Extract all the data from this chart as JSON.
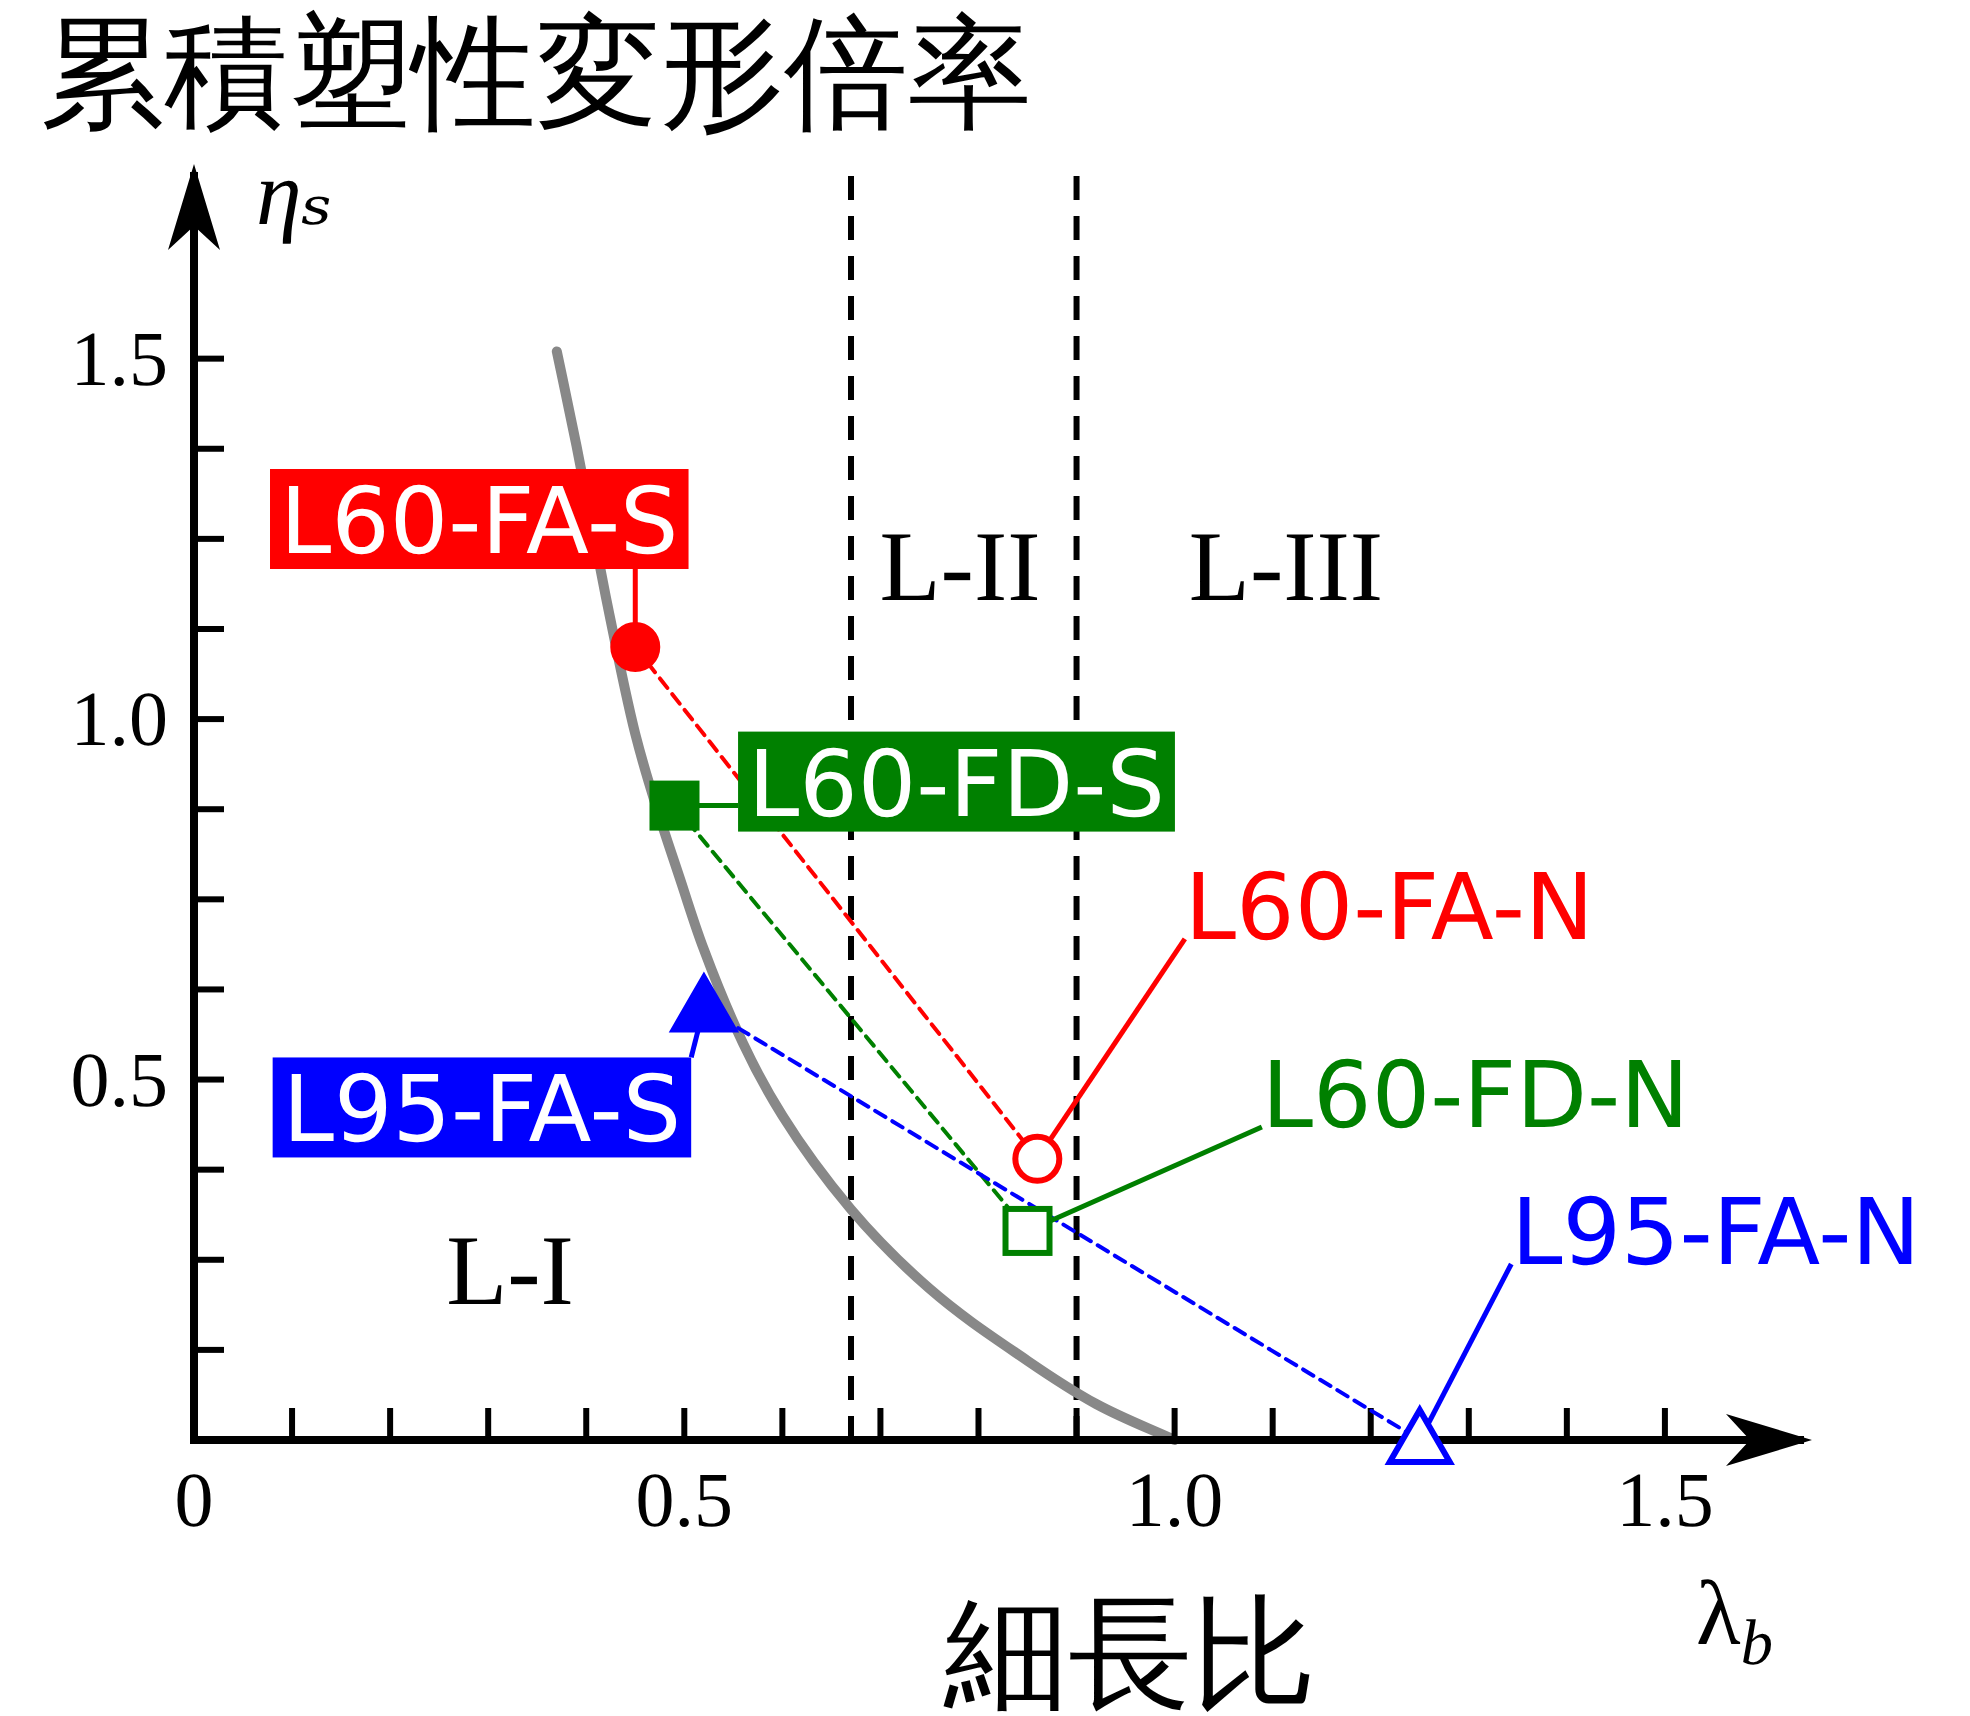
{
  "chart_data": {
    "type": "line",
    "title": "累積塑性変形倍率",
    "xlabel": "λ$_{b}$",
    "ylabel": "ηₛ",
    "annotations": [
      "細長比",
      "L-I",
      "L-II",
      "L-III"
    ],
    "xlim": [
      0,
      1.65
    ],
    "ylim": [
      0,
      1.77
    ],
    "xticks": [
      {
        "value": 0,
        "label": "0"
      },
      {
        "value": 0.1,
        "label": null
      },
      {
        "value": 0.2,
        "label": null
      },
      {
        "value": 0.3,
        "label": null
      },
      {
        "value": 0.4,
        "label": null
      },
      0.5,
      {
        "value": 0.6,
        "label": null
      },
      {
        "value": 0.7,
        "label": null
      },
      {
        "value": 0.8,
        "label": null
      },
      {
        "value": 0.9,
        "label": null
      },
      {
        "value": 1,
        "label": "1.0"
      },
      {
        "value": 1.1,
        "label": null
      },
      {
        "value": 1.2,
        "label": null
      },
      {
        "value": 1.3,
        "label": null
      },
      {
        "value": 1.4,
        "label": null
      },
      1.5
    ],
    "yticks": [
      {
        "value": 0.125,
        "label": null
      },
      {
        "value": 0.25,
        "label": null
      },
      {
        "value": 0.375,
        "label": null
      },
      0.5,
      {
        "value": 0.625,
        "label": null
      },
      {
        "value": 0.75,
        "label": null
      },
      {
        "value": 0.875,
        "label": null
      },
      {
        "value": 1,
        "label": "1.0"
      },
      {
        "value": 1.125,
        "label": null
      },
      {
        "value": 1.25,
        "label": null
      },
      {
        "value": 1.375,
        "label": null
      },
      1.5
    ],
    "ref_lines": [
      {
        "axis": "x",
        "value": 0.67,
        "color": "#000000",
        "line_style": "dashed"
      },
      {
        "axis": "x",
        "value": 0.9,
        "color": "#000000",
        "line_style": "dashed"
      }
    ],
    "series": [
      {
        "color": "#888888",
        "marker": "none",
        "line_style": "solid",
        "x": [
          0.37,
          0.39,
          0.42,
          0.45,
          0.5,
          0.52,
          0.56,
          0.6,
          0.67,
          0.75,
          0.85,
          0.92,
          1.0
        ],
        "values": [
          1.51,
          1.38,
          1.17,
          0.98,
          0.76,
          0.68,
          0.55,
          0.45,
          0.32,
          0.21,
          0.11,
          0.05,
          0
        ]
      },
      {
        "color": "#ff0000",
        "marker": "circle",
        "line_style": "dashed",
        "x": [
          0.45,
          0.86
        ],
        "values": [
          1.1,
          0.39
        ],
        "colors": [
          "#ff0000",
          "#ffffff"
        ],
        "value_labels": [
          "L60-FA-S",
          "L60-FA-N"
        ]
      },
      {
        "color": "#008000",
        "marker": "square",
        "line_style": "dashed",
        "x": [
          0.49,
          0.85
        ],
        "values": [
          0.88,
          0.29
        ],
        "colors": [
          "#008000",
          "#ffffff"
        ],
        "value_labels": [
          "L60-FD-S",
          "L60-FD-N"
        ]
      },
      {
        "color": "#0000ff",
        "marker": "triangle",
        "line_style": "dashed",
        "x": [
          0.52,
          1.25
        ],
        "values": [
          0.6,
          0
        ],
        "colors": [
          "#0000ff",
          "#ffffff"
        ],
        "value_labels": [
          "L95-FA-S",
          "L95-FA-N"
        ]
      }
    ]
  }
}
